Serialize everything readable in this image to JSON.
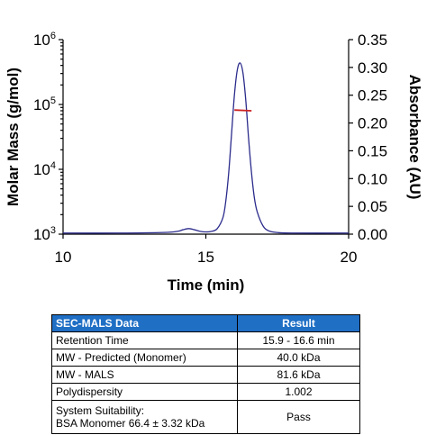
{
  "chart_data": {
    "type": "line",
    "xlabel": "Time (min)",
    "ylabel_left": "Molar Mass (g/mol)",
    "ylabel_right": "Absorbance (AU)",
    "xlim": [
      10,
      20
    ],
    "x_ticks": [
      "10",
      "15",
      "20"
    ],
    "y_left_scale": "log",
    "y_left_lim": [
      1000,
      1000000
    ],
    "y_left_ticks": [
      {
        "base": "10",
        "exp": "6",
        "value": 1000000
      },
      {
        "base": "10",
        "exp": "5",
        "value": 100000
      },
      {
        "base": "10",
        "exp": "4",
        "value": 10000
      },
      {
        "base": "10",
        "exp": "3",
        "value": 1000
      }
    ],
    "y_right_lim": [
      0,
      0.35
    ],
    "y_right_ticks": [
      "0.35",
      "0.30",
      "0.25",
      "0.20",
      "0.15",
      "0.10",
      "0.05",
      "0.00"
    ],
    "series": [
      {
        "axis": "right",
        "color": "#2b2b8c",
        "x": [
          10.0,
          12.0,
          13.5,
          14.0,
          14.2,
          14.4,
          14.6,
          14.8,
          15.0,
          15.2,
          15.4,
          15.6,
          15.7,
          15.8,
          15.9,
          16.0,
          16.1,
          16.2,
          16.3,
          16.4,
          16.5,
          16.6,
          16.7,
          16.8,
          17.0,
          17.2,
          17.5,
          18.0,
          20.0
        ],
        "y": [
          0.002,
          0.002,
          0.003,
          0.005,
          0.008,
          0.01,
          0.008,
          0.005,
          0.004,
          0.005,
          0.01,
          0.03,
          0.06,
          0.11,
          0.18,
          0.25,
          0.295,
          0.308,
          0.29,
          0.24,
          0.17,
          0.11,
          0.065,
          0.04,
          0.015,
          0.006,
          0.003,
          0.002,
          0.002
        ]
      },
      {
        "axis": "left",
        "color": "#cc2222",
        "x": [
          16.0,
          16.6
        ],
        "y": [
          82000,
          80000
        ]
      }
    ],
    "grid": false
  },
  "table": {
    "headers": [
      "SEC-MALS Data",
      "Result"
    ],
    "rows": [
      {
        "label": "Retention Time",
        "value": "15.9 - 16.6 min"
      },
      {
        "label": "MW - Predicted (Monomer)",
        "value": "40.0 kDa"
      },
      {
        "label": "MW - MALS",
        "value": "81.6 kDa"
      },
      {
        "label": "Polydispersity",
        "value": "1.002"
      }
    ],
    "suitability": {
      "label_line1": "System Suitability:",
      "label_line2": "BSA Monomer 66.4 ± 3.32 kDa",
      "value": "Pass"
    }
  }
}
